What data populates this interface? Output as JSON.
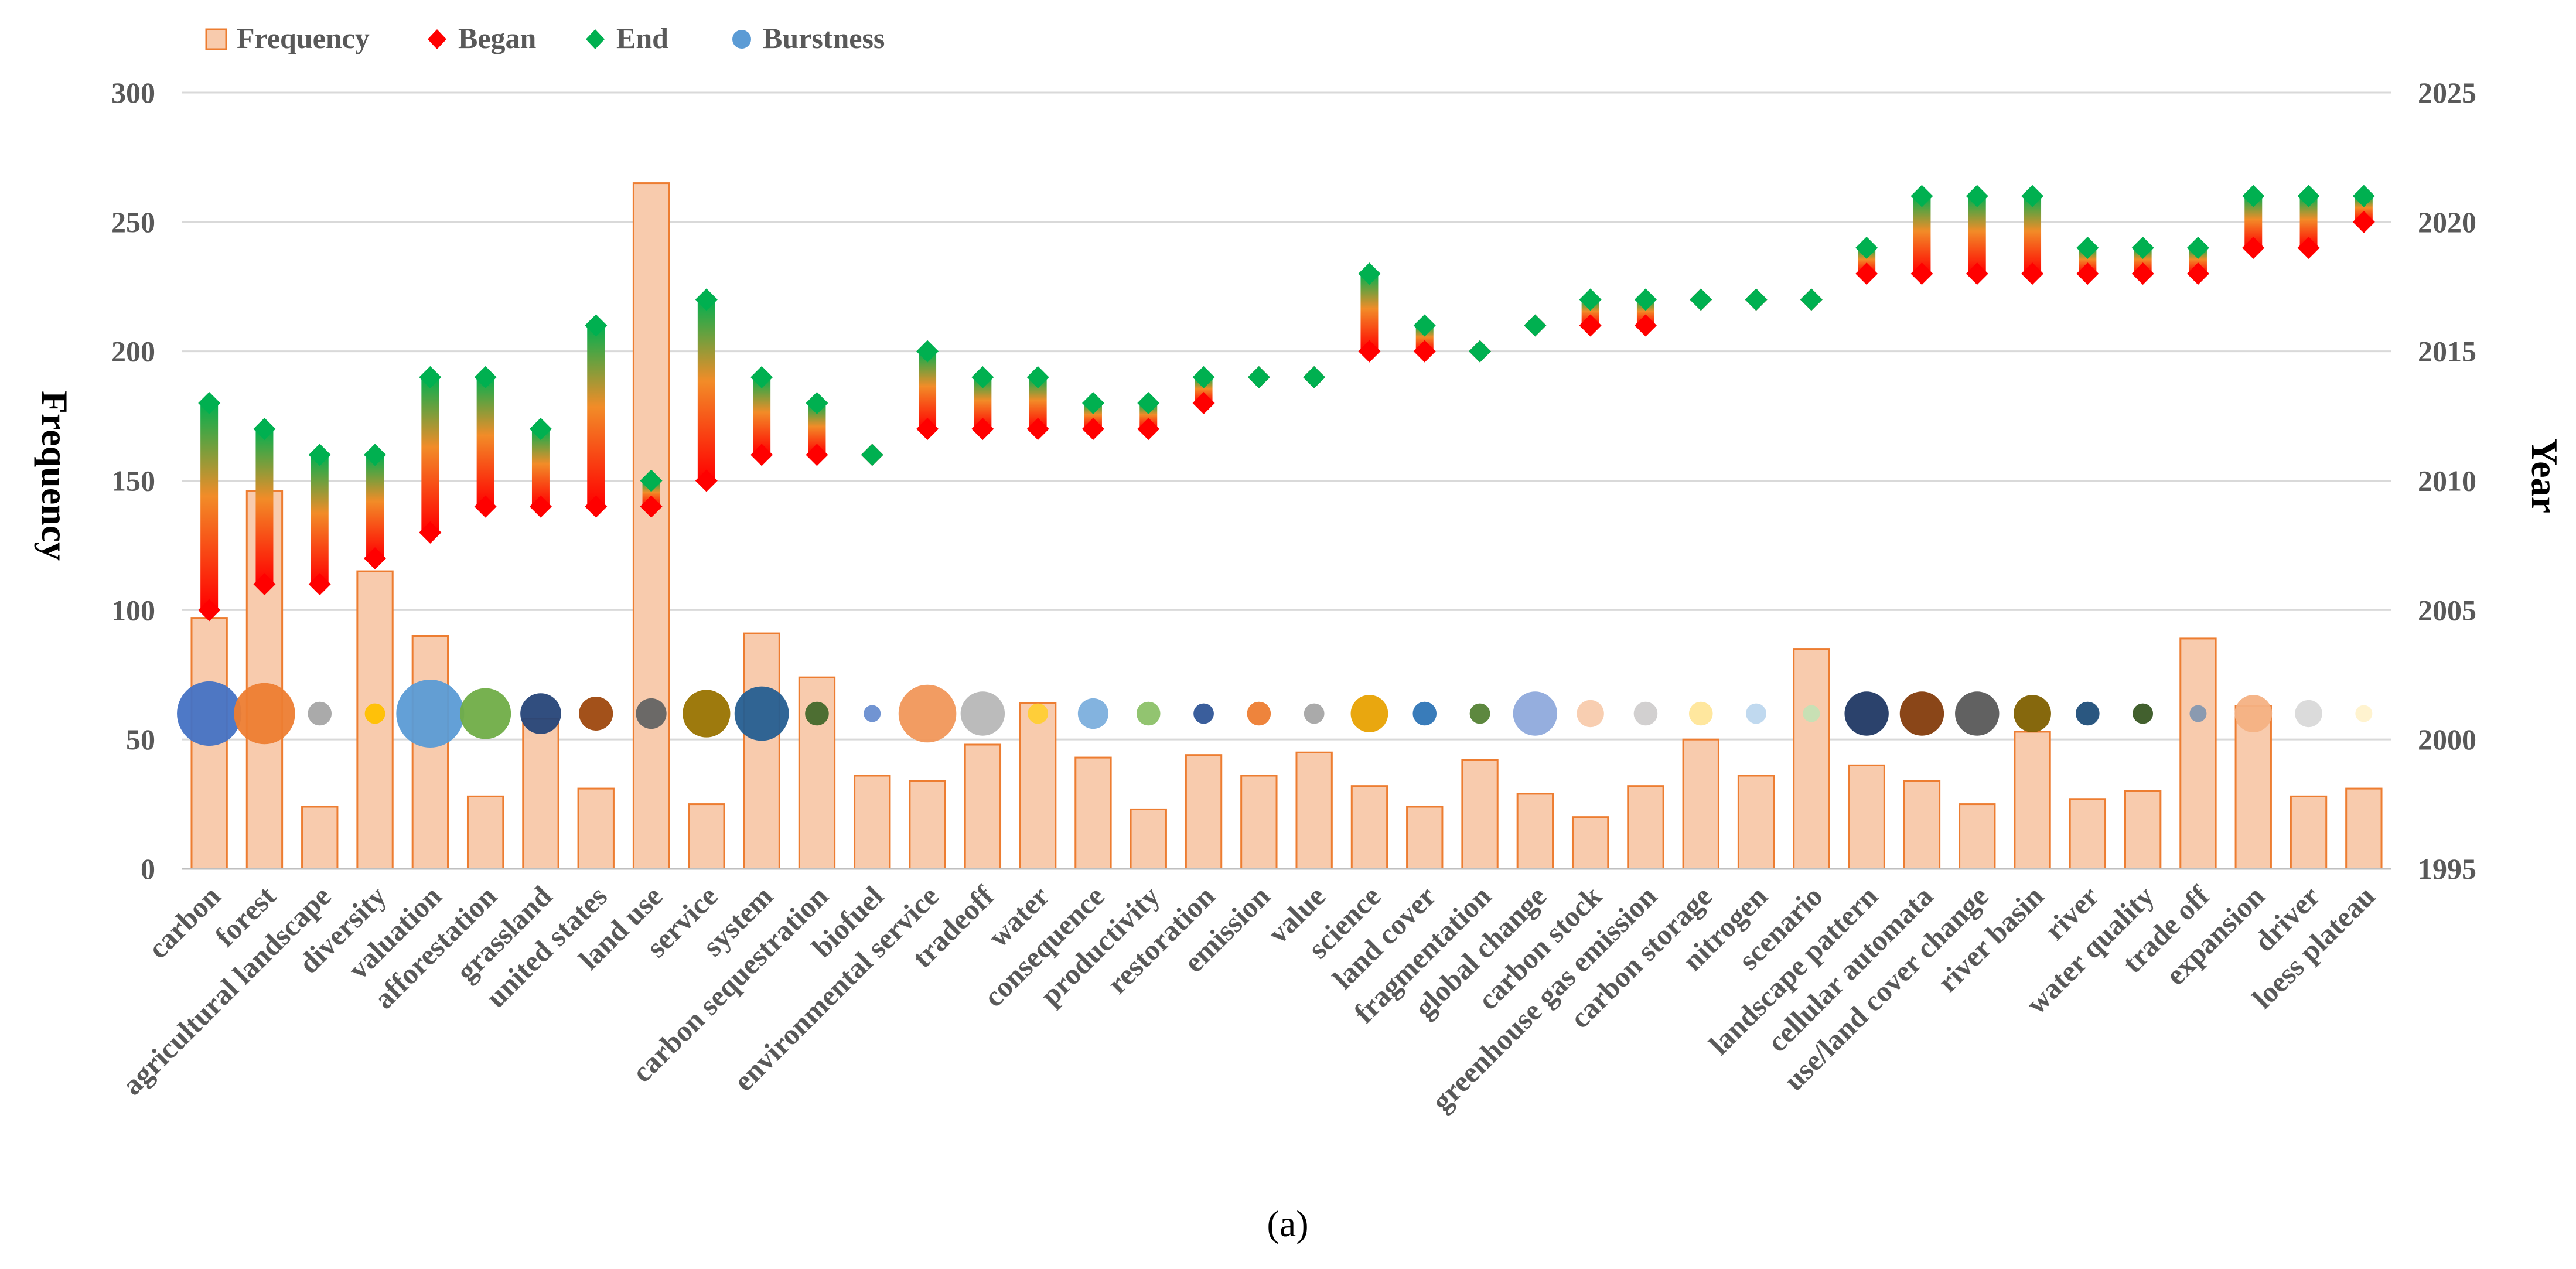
{
  "chart_data": {
    "type": "bar",
    "caption": "(a)",
    "legend": {
      "placement": "top-left",
      "items": [
        {
          "label": "Frequency",
          "marker": "bar"
        },
        {
          "label": "Began",
          "marker": "diamond"
        },
        {
          "label": "End",
          "marker": "diamond"
        },
        {
          "label": "Burstness",
          "marker": "circle"
        }
      ]
    },
    "ylabel": "Frequency",
    "y2label": "Year",
    "ylim": [
      0,
      300
    ],
    "yticks": [
      "0",
      "50",
      "100",
      "150",
      "200",
      "250",
      "300"
    ],
    "y2lim": [
      1995,
      2025
    ],
    "y2ticks": [
      "1995",
      "2000",
      "2005",
      "2010",
      "2015",
      "2020",
      "2025"
    ],
    "grid": true,
    "colors": {
      "bar_fill": "#F8CBAD",
      "bar_edge": "#ED7D31",
      "began": "#FF0000",
      "end": "#00B050",
      "grid": "#D9D9D9",
      "axis_text": "#595959"
    },
    "categories": [
      "carbon",
      "forest",
      "agricultural landscape",
      "diversity",
      "valuation",
      "afforestation",
      "grassland",
      "united states",
      "land use",
      "service",
      "system",
      "carbon sequestration",
      "biofuel",
      "environmental service",
      "tradeoff",
      "water",
      "consequence",
      "productivity",
      "restoration",
      "emission",
      "value",
      "science",
      "land cover",
      "fragmentation",
      "global change",
      "carbon stock",
      "greenhouse gas emission",
      "carbon storage",
      "nitrogen",
      "scenario",
      "landscape pattern",
      "cellular automata",
      "use/land cover change",
      "river basin",
      "river",
      "water quality",
      "trade off",
      "expansion",
      "driver",
      "loess plateau"
    ],
    "series": [
      {
        "name": "Frequency",
        "type": "bar",
        "axis": "left",
        "values": [
          97,
          146,
          24,
          115,
          90,
          28,
          58,
          31,
          265,
          25,
          91,
          74,
          36,
          34,
          48,
          64,
          43,
          23,
          44,
          36,
          45,
          32,
          24,
          42,
          29,
          20,
          32,
          50,
          36,
          85,
          40,
          34,
          25,
          53,
          27,
          30,
          89,
          63,
          28,
          31
        ]
      },
      {
        "name": "Began",
        "type": "scatter",
        "axis": "right",
        "values": [
          2005,
          2006,
          2006,
          2007,
          2008,
          2009,
          2009,
          2009,
          2009,
          2010,
          2011,
          2011,
          2011,
          2012,
          2012,
          2012,
          2012,
          2012,
          2013,
          2014,
          2014,
          2015,
          2015,
          2015,
          2016,
          2016,
          2016,
          2017,
          2017,
          2017,
          2018,
          2018,
          2018,
          2018,
          2018,
          2018,
          2018,
          2019,
          2019,
          2020
        ]
      },
      {
        "name": "End",
        "type": "scatter",
        "axis": "right",
        "values": [
          2013,
          2012,
          2011,
          2011,
          2014,
          2014,
          2012,
          2016,
          2010,
          2017,
          2014,
          2013,
          2011,
          2015,
          2014,
          2014,
          2013,
          2013,
          2014,
          2014,
          2014,
          2018,
          2016,
          2015,
          2016,
          2017,
          2017,
          2017,
          2017,
          2017,
          2019,
          2021,
          2021,
          2021,
          2019,
          2019,
          2019,
          2021,
          2021,
          2021
        ]
      },
      {
        "name": "Burstness",
        "type": "bubble",
        "baseline": 60,
        "values": [
          9.5,
          9.0,
          3.5,
          3.0,
          10.0,
          7.5,
          6.0,
          5.0,
          4.5,
          7.0,
          8.0,
          3.5,
          2.5,
          8.5,
          6.5,
          3.0,
          4.5,
          3.5,
          3.0,
          3.5,
          3.0,
          5.5,
          3.5,
          3.0,
          6.5,
          4.0,
          3.5,
          3.5,
          3.0,
          2.5,
          6.5,
          6.5,
          6.5,
          5.5,
          3.5,
          3.0,
          2.5,
          5.5,
          4.0,
          2.5
        ],
        "colors": [
          "#4472C4",
          "#ED7D31",
          "#A5A5A5",
          "#FFC000",
          "#5B9BD5",
          "#70AD47",
          "#264478",
          "#9E480E",
          "#636363",
          "#997300",
          "#255E91",
          "#43682B",
          "#698ED0",
          "#F1975A",
          "#B7B7B7",
          "#FFCD33",
          "#7CAFDD",
          "#8CC168",
          "#2F5597",
          "#ED7D31",
          "#A5A5A5",
          "#E8A202",
          "#2E75B6",
          "#548235",
          "#8FAADC",
          "#F8CBAD",
          "#D0CECE",
          "#FFE699",
          "#BDD7EE",
          "#C5E0B4",
          "#203864",
          "#843C0C",
          "#595959",
          "#7F6000",
          "#1F4E79",
          "#385723",
          "#8497B0",
          "#F4B183",
          "#D9D9D9",
          "#FFF2CC"
        ]
      }
    ]
  }
}
